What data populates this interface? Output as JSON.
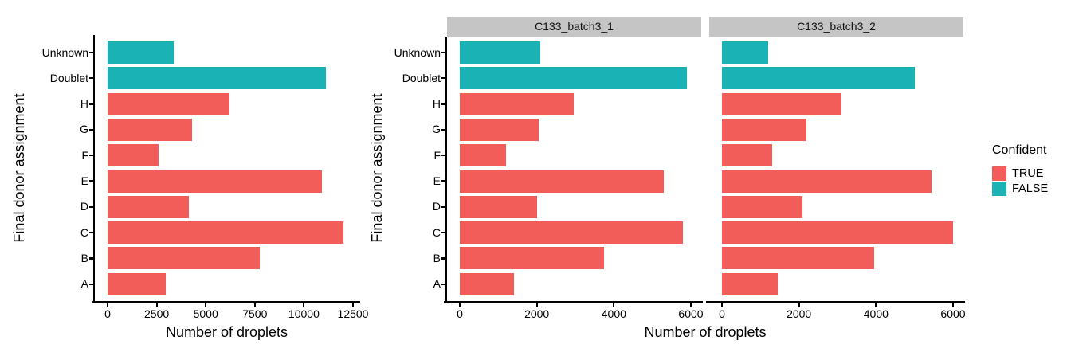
{
  "colors": {
    "confident_true": "#F25D59",
    "confident_false": "#1AB2B5",
    "strip_bg": "#C5C5C5",
    "axis": "#000000"
  },
  "legend": {
    "title": "Confident",
    "items": [
      {
        "label": "TRUE",
        "color": "#F25D59"
      },
      {
        "label": "FALSE",
        "color": "#1AB2B5"
      }
    ]
  },
  "chart_data": [
    {
      "type": "bar",
      "orientation": "horizontal",
      "xlabel": "Number of droplets",
      "ylabel": "Final donor assignment",
      "categories": [
        "Unknown",
        "Doublet",
        "H",
        "G",
        "F",
        "E",
        "D",
        "C",
        "B",
        "A"
      ],
      "confident": [
        false,
        false,
        true,
        true,
        true,
        true,
        true,
        true,
        true,
        true
      ],
      "values": [
        3350,
        11100,
        6200,
        4300,
        2600,
        10900,
        4150,
        12000,
        7750,
        2950
      ],
      "xlim": [
        0,
        12500
      ],
      "xticks": [
        0,
        2500,
        5000,
        7500,
        10000,
        12500
      ],
      "grid": false,
      "legend_position": "none"
    },
    {
      "type": "bar",
      "orientation": "horizontal",
      "xlabel": "Number of droplets",
      "ylabel": "Final donor assignment",
      "categories": [
        "Unknown",
        "Doublet",
        "H",
        "G",
        "F",
        "E",
        "D",
        "C",
        "B",
        "A"
      ],
      "confident": [
        false,
        false,
        true,
        true,
        true,
        true,
        true,
        true,
        true,
        true
      ],
      "facets": [
        {
          "label": "C133_batch3_1",
          "values": [
            2100,
            5900,
            2950,
            2050,
            1200,
            5300,
            2000,
            5800,
            3750,
            1400
          ]
        },
        {
          "label": "C133_batch3_2",
          "values": [
            1200,
            5000,
            3100,
            2200,
            1300,
            5450,
            2100,
            6000,
            3950,
            1450
          ]
        }
      ],
      "xlim": [
        0,
        6200
      ],
      "xticks": [
        0,
        2000,
        4000,
        6000
      ],
      "grid": false,
      "legend_position": "right"
    }
  ]
}
